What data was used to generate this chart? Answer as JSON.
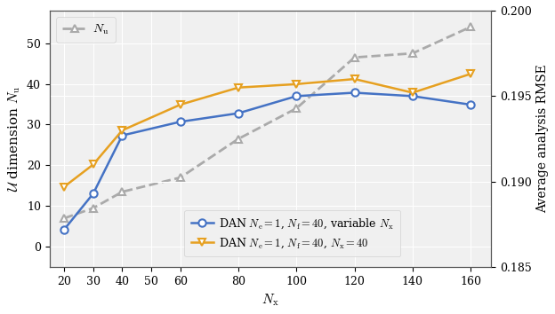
{
  "nx_values": [
    20,
    30,
    40,
    60,
    80,
    100,
    120,
    140,
    160
  ],
  "blue_rmse": [
    0.1872,
    0.1893,
    0.1927,
    0.1935,
    0.194,
    0.195,
    0.1952,
    0.195,
    0.1945
  ],
  "orange_rmse": [
    0.1897,
    0.191,
    0.193,
    0.1945,
    0.1955,
    0.1957,
    0.196,
    0.1952,
    0.1963
  ],
  "gray_Nu": [
    7.0,
    9.5,
    13.5,
    17.0,
    26.5,
    34.0,
    46.5,
    47.5,
    54.0
  ],
  "blue_color": "#4472c4",
  "orange_color": "#e6a020",
  "gray_color": "#aaaaaa",
  "xlabel": "$N_\\mathrm{x}$",
  "ylabel_left": "$\\mathcal{U}$ dimension $N_\\mathrm{u}$",
  "ylabel_right": "Average analysis RMSE",
  "legend_blue": "DAN $N_\\mathrm{e} = 1$, $N_\\mathrm{f} = 40$, variable $N_\\mathrm{x}$",
  "legend_orange": "DAN $N_\\mathrm{e} = 1$, $N_\\mathrm{f} = 40$, $N_\\mathrm{x} = 40$",
  "legend_gray": "$N_\\mathrm{u}$",
  "ylim_left": [
    -5,
    58
  ],
  "ylim_right": [
    0.185,
    0.2
  ],
  "xlim": [
    15,
    167
  ],
  "xticks": [
    20,
    30,
    40,
    50,
    60,
    80,
    100,
    120,
    140,
    160
  ],
  "yticks_left": [
    0,
    10,
    20,
    30,
    40,
    50
  ],
  "yticks_right": [
    0.185,
    0.19,
    0.195,
    0.2
  ]
}
